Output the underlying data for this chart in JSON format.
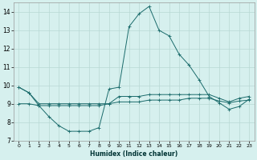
{
  "xlabel": "Humidex (Indice chaleur)",
  "bg_color": "#d6f0ee",
  "grid_color": "#b8d8d4",
  "line_color": "#1a6b6b",
  "xlim": [
    -0.5,
    23.5
  ],
  "ylim": [
    7,
    14.5
  ],
  "yticks": [
    7,
    8,
    9,
    10,
    11,
    12,
    13,
    14
  ],
  "xticks": [
    0,
    1,
    2,
    3,
    4,
    5,
    6,
    7,
    8,
    9,
    10,
    11,
    12,
    13,
    14,
    15,
    16,
    17,
    18,
    19,
    20,
    21,
    22,
    23
  ],
  "lines": [
    {
      "x": [
        0,
        1,
        2,
        3,
        4,
        5,
        6,
        7,
        8,
        9,
        10,
        11,
        12,
        13,
        14,
        15,
        16,
        17,
        18,
        19,
        20,
        21,
        22,
        23
      ],
      "y": [
        9.9,
        9.6,
        8.9,
        8.3,
        7.8,
        7.5,
        7.5,
        7.5,
        7.7,
        9.8,
        9.9,
        13.2,
        13.9,
        14.3,
        13.0,
        12.7,
        11.7,
        11.1,
        10.3,
        9.4,
        9.05,
        8.7,
        8.85,
        9.25
      ]
    },
    {
      "x": [
        0,
        1,
        2,
        3,
        4,
        5,
        6,
        7,
        8,
        9,
        10,
        11,
        12,
        13,
        14,
        15,
        16,
        17,
        18,
        19,
        20,
        21,
        22,
        23
      ],
      "y": [
        9.9,
        9.6,
        9.0,
        9.0,
        9.0,
        9.0,
        9.0,
        9.0,
        9.0,
        9.0,
        9.4,
        9.4,
        9.4,
        9.5,
        9.5,
        9.5,
        9.5,
        9.5,
        9.5,
        9.5,
        9.3,
        9.1,
        9.3,
        9.4
      ]
    },
    {
      "x": [
        0,
        1,
        2,
        3,
        4,
        5,
        6,
        7,
        8,
        9,
        10,
        11,
        12,
        13,
        14,
        15,
        16,
        17,
        18,
        19,
        20,
        21,
        22,
        23
      ],
      "y": [
        9.0,
        9.0,
        8.9,
        8.9,
        8.9,
        8.9,
        8.9,
        8.9,
        8.9,
        9.0,
        9.1,
        9.1,
        9.1,
        9.2,
        9.2,
        9.2,
        9.2,
        9.3,
        9.3,
        9.3,
        9.15,
        9.05,
        9.15,
        9.2
      ]
    }
  ]
}
